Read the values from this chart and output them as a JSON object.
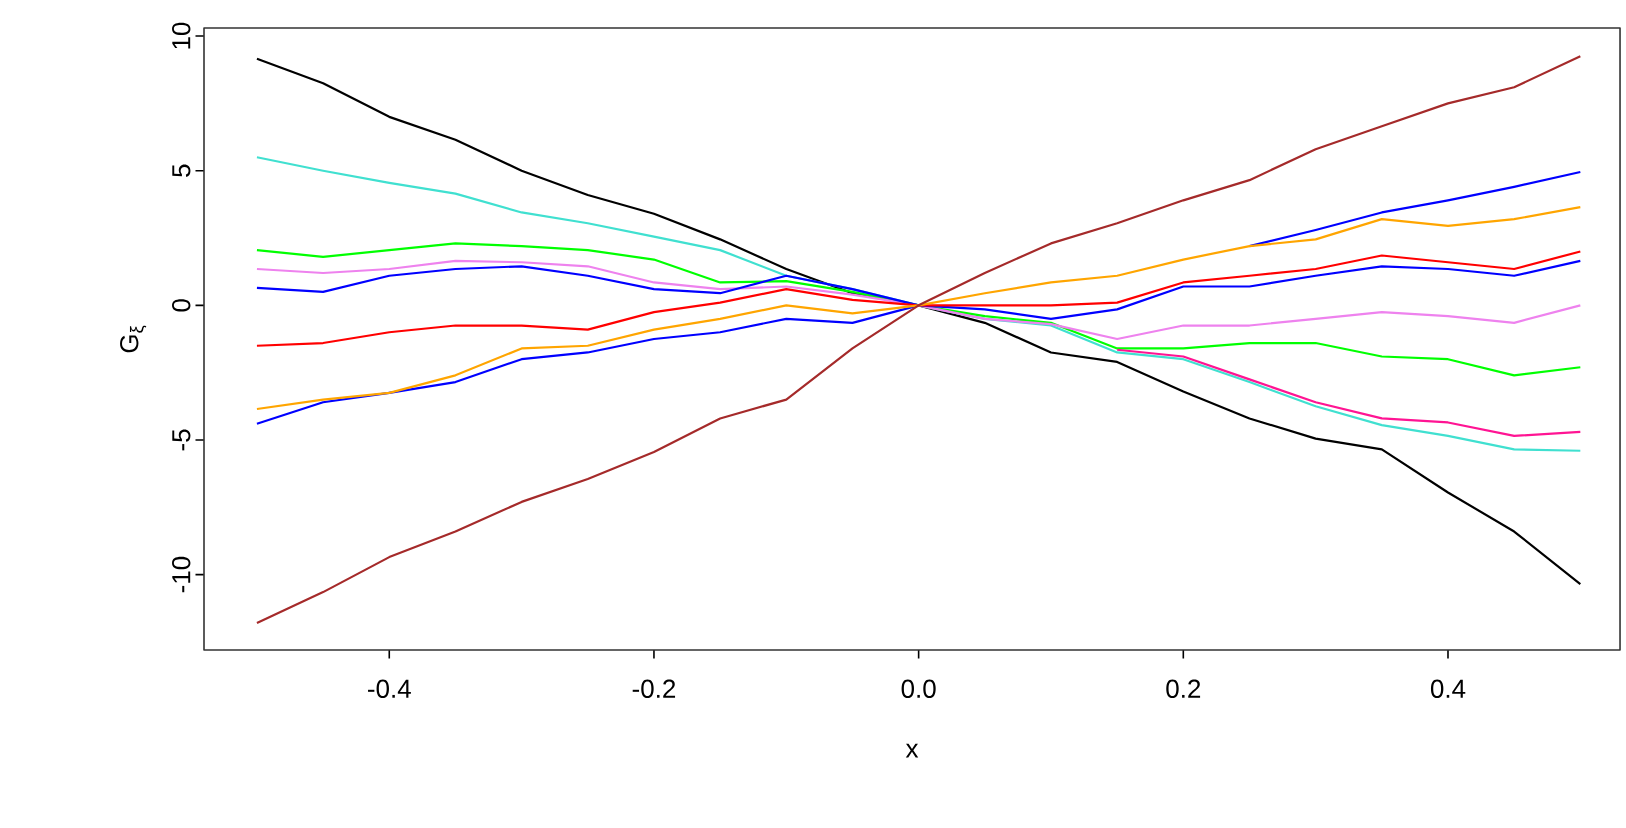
{
  "chart_data": {
    "type": "line",
    "xlabel": "x",
    "ylabel": "G$_{ξ}$",
    "x": [
      -0.5,
      -0.45,
      -0.4,
      -0.35,
      -0.3,
      -0.25,
      -0.2,
      -0.15,
      -0.1,
      -0.05,
      0,
      0.05,
      0.1,
      0.15,
      0.2,
      0.25,
      0.3,
      0.35,
      0.4,
      0.45,
      0.5
    ],
    "series": [
      {
        "color": "#000000",
        "values": [
          9.16,
          8.25,
          7.0,
          6.15,
          5.0,
          4.1,
          3.4,
          2.45,
          1.35,
          0.45,
          0,
          -0.65,
          -1.75,
          -2.1,
          -3.2,
          -4.2,
          -4.95,
          -5.35,
          -6.95,
          -8.4,
          -10.35
        ]
      },
      {
        "color": "#40E0D0",
        "values": [
          5.5,
          5.0,
          4.55,
          4.15,
          3.45,
          3.05,
          2.55,
          2.05,
          1.1,
          0.6,
          0,
          -0.5,
          -0.75,
          -1.75,
          -2.0,
          -2.85,
          -3.75,
          -4.45,
          -4.85,
          -5.35,
          -5.4
        ]
      },
      {
        "color": "#00FF00",
        "values": [
          2.05,
          1.8,
          2.05,
          2.3,
          2.2,
          2.05,
          1.7,
          0.85,
          0.9,
          0.5,
          0,
          -0.4,
          -0.65,
          -1.6,
          -1.6,
          -1.4,
          -1.4,
          -1.9,
          -2.0,
          -2.6,
          -2.3
        ]
      },
      {
        "color": "#EE82EE",
        "values": [
          1.35,
          1.2,
          1.35,
          1.65,
          1.6,
          1.45,
          0.85,
          0.6,
          0.7,
          0.4,
          0,
          -0.5,
          -0.7,
          -1.25,
          -0.75,
          -0.75,
          -0.5,
          -0.25,
          -0.4,
          -0.65,
          0
        ]
      },
      {
        "color": "#0000FF",
        "values": [
          0.65,
          0.5,
          1.1,
          1.35,
          1.45,
          1.1,
          0.6,
          0.45,
          1.1,
          0.6,
          0,
          -0.15,
          -0.5,
          -0.15,
          0.7,
          0.7,
          1.1,
          1.45,
          1.35,
          1.1,
          1.65
        ]
      },
      {
        "color": "#FF0000",
        "values": [
          -1.5,
          -1.4,
          -1.0,
          -0.75,
          -0.75,
          -0.9,
          -0.25,
          0.1,
          0.6,
          0.2,
          0,
          0,
          0,
          0.1,
          0.85,
          1.1,
          1.35,
          1.85,
          1.6,
          1.35,
          2.0
        ]
      },
      {
        "color": "#0000FF",
        "values": [
          -4.4,
          -3.6,
          -3.25,
          -2.85,
          -2.0,
          -1.75,
          -1.25,
          -1.0,
          -0.5,
          -0.65,
          0,
          null,
          null,
          null,
          null,
          2.2,
          2.8,
          3.45,
          3.9,
          4.4,
          4.95
        ]
      },
      {
        "color": "#FFA500",
        "values": [
          -3.85,
          -3.5,
          -3.25,
          -2.6,
          -1.6,
          -1.5,
          -0.9,
          -0.5,
          0,
          -0.3,
          0,
          0.45,
          0.85,
          1.1,
          1.7,
          2.2,
          2.45,
          3.2,
          2.95,
          3.2,
          3.65
        ]
      },
      {
        "color": "#A52A2A",
        "values": [
          -11.8,
          -10.65,
          -9.35,
          -8.4,
          -7.3,
          -6.45,
          -5.45,
          -4.2,
          -3.5,
          -1.6,
          0,
          1.2,
          2.3,
          3.05,
          3.9,
          4.65,
          5.8,
          6.65,
          7.5,
          8.1,
          9.25
        ]
      },
      {
        "color": "#FF1493",
        "values": [
          null,
          null,
          null,
          null,
          null,
          null,
          null,
          null,
          null,
          null,
          null,
          null,
          null,
          -1.65,
          -1.9,
          -2.75,
          -3.6,
          -4.2,
          -4.35,
          -4.85,
          -4.7
        ]
      }
    ],
    "xlim": [
      -0.54,
      0.53
    ],
    "ylim": [
      -12.8,
      10.3
    ],
    "xticks": [
      -0.4,
      -0.2,
      {
        "value": 0,
        "label": "0.0"
      },
      0.2,
      0.4
    ],
    "yticks": [
      -10,
      -5,
      0,
      5,
      10
    ],
    "grid": false,
    "marker": "none",
    "line_style": "solid"
  }
}
